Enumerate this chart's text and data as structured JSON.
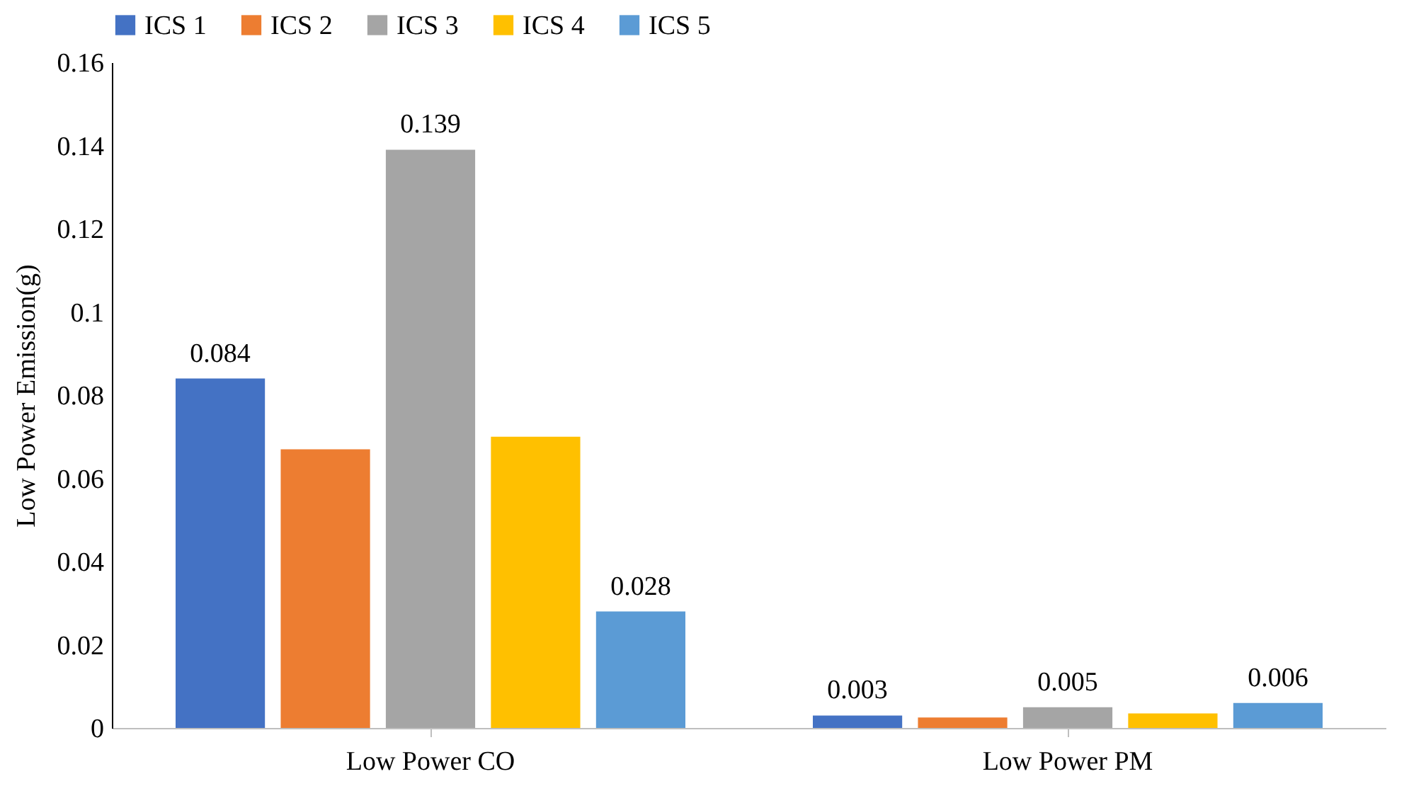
{
  "chart_data": {
    "type": "bar",
    "ylabel": "Low Power Emission(g)",
    "categories": [
      "Low Power CO",
      "Low Power PM"
    ],
    "series": [
      {
        "name": "ICS 1",
        "color": "#4472c4",
        "values": [
          0.084,
          0.003
        ],
        "value_labels": [
          "0.084",
          "0.003"
        ]
      },
      {
        "name": "ICS 2",
        "color": "#ed7d31",
        "values": [
          0.067,
          0.0025
        ],
        "value_labels": [
          null,
          null
        ]
      },
      {
        "name": "ICS 3",
        "color": "#a5a5a5",
        "values": [
          0.139,
          0.005
        ],
        "value_labels": [
          "0.139",
          "0.005"
        ]
      },
      {
        "name": "ICS 4",
        "color": "#ffc000",
        "values": [
          0.07,
          0.0035
        ],
        "value_labels": [
          null,
          null
        ]
      },
      {
        "name": "ICS 5",
        "color": "#5b9bd5",
        "values": [
          0.028,
          0.006
        ],
        "value_labels": [
          "0.028",
          "0.006"
        ]
      }
    ],
    "ylim": [
      0,
      0.16
    ],
    "yticks": [
      0,
      0.02,
      0.04,
      0.06,
      0.08,
      0.1,
      0.12,
      0.14,
      0.16
    ],
    "grid": false,
    "legend": "top"
  }
}
